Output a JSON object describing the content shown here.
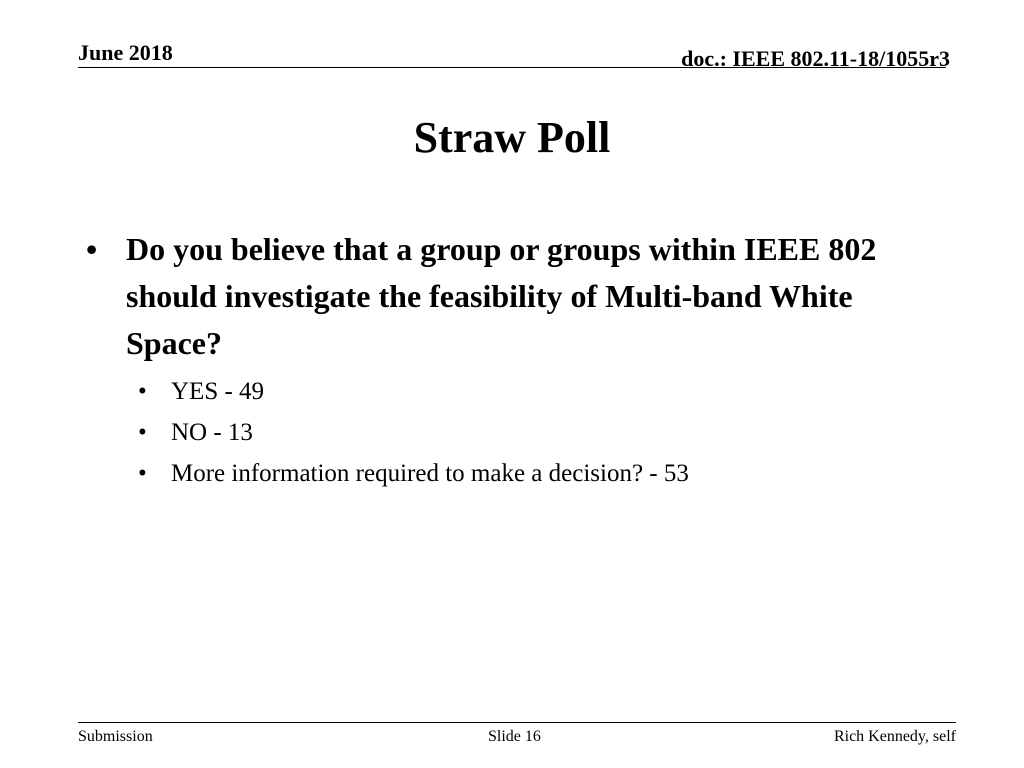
{
  "header": {
    "date": "June 2018",
    "doc_id": "doc.: IEEE 802.11-18/1055r3"
  },
  "title": "Straw Poll",
  "bullets": {
    "question": "Do you believe that a group or groups within IEEE 802 should investigate the feasibility of Multi-band White Space?",
    "answers": [
      "YES - 49",
      "NO - 13",
      "More information required to make a decision? - 53"
    ]
  },
  "footer": {
    "left": "Submission",
    "center": "Slide 16",
    "right": "Rich Kennedy, self"
  }
}
